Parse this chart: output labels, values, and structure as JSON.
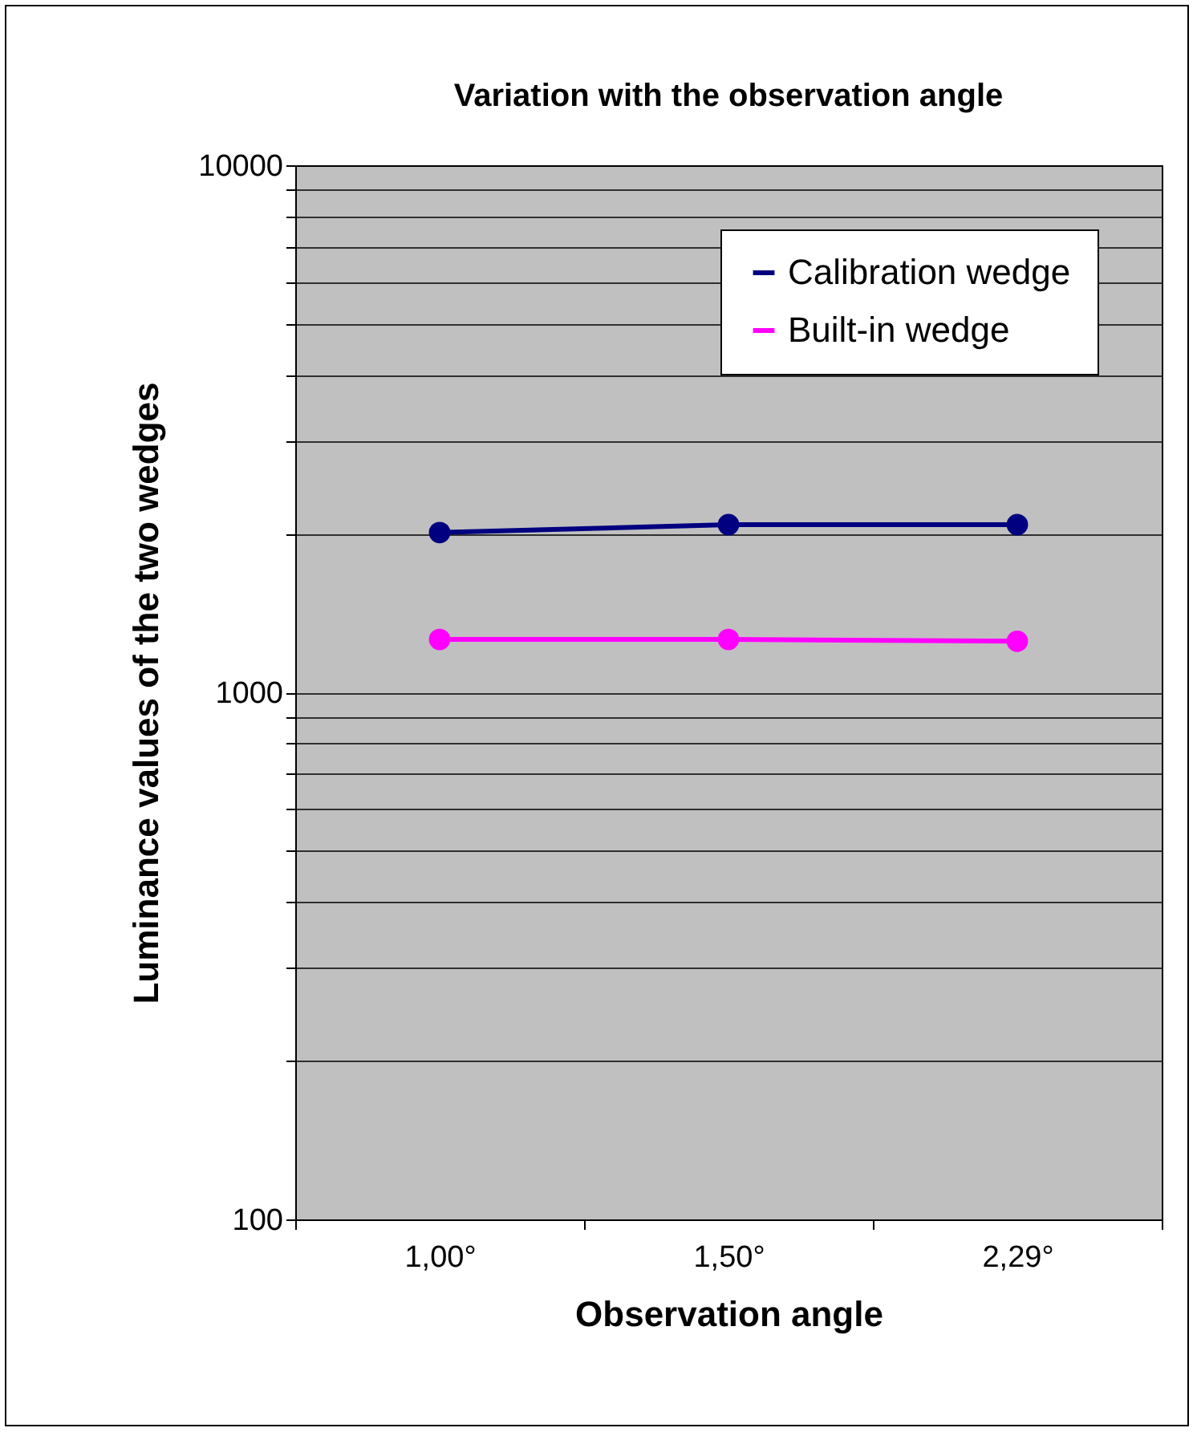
{
  "chart_data": {
    "type": "line",
    "title": "Variation with the observation angle",
    "xlabel": "Observation angle",
    "ylabel": "Luminance values of the two wedges",
    "categories": [
      "1,00°",
      "1,50°",
      "2,29°"
    ],
    "series": [
      {
        "name": "Calibration wedge",
        "color": "#000080",
        "values": [
          2010,
          2080,
          2080
        ]
      },
      {
        "name": "Built-in wedge",
        "color": "#ff00ff",
        "values": [
          1260,
          1260,
          1250
        ]
      }
    ],
    "log": "y",
    "ylim": [
      100,
      10000
    ],
    "yticks": [
      100,
      {
        "value": 200,
        "label": null
      },
      {
        "value": 300,
        "label": null
      },
      {
        "value": 400,
        "label": null
      },
      {
        "value": 500,
        "label": null
      },
      {
        "value": 600,
        "label": null
      },
      {
        "value": 700,
        "label": null
      },
      {
        "value": 800,
        "label": null
      },
      {
        "value": 900,
        "label": null
      },
      1000,
      {
        "value": 2000,
        "label": null
      },
      {
        "value": 3000,
        "label": null
      },
      {
        "value": 4000,
        "label": null
      },
      {
        "value": 5000,
        "label": null
      },
      {
        "value": 6000,
        "label": null
      },
      {
        "value": 7000,
        "label": null
      },
      {
        "value": 8000,
        "label": null
      },
      {
        "value": 9000,
        "label": null
      },
      10000
    ],
    "grid": "y",
    "legend": "top right",
    "marker": "circle",
    "line_style": "solid"
  }
}
